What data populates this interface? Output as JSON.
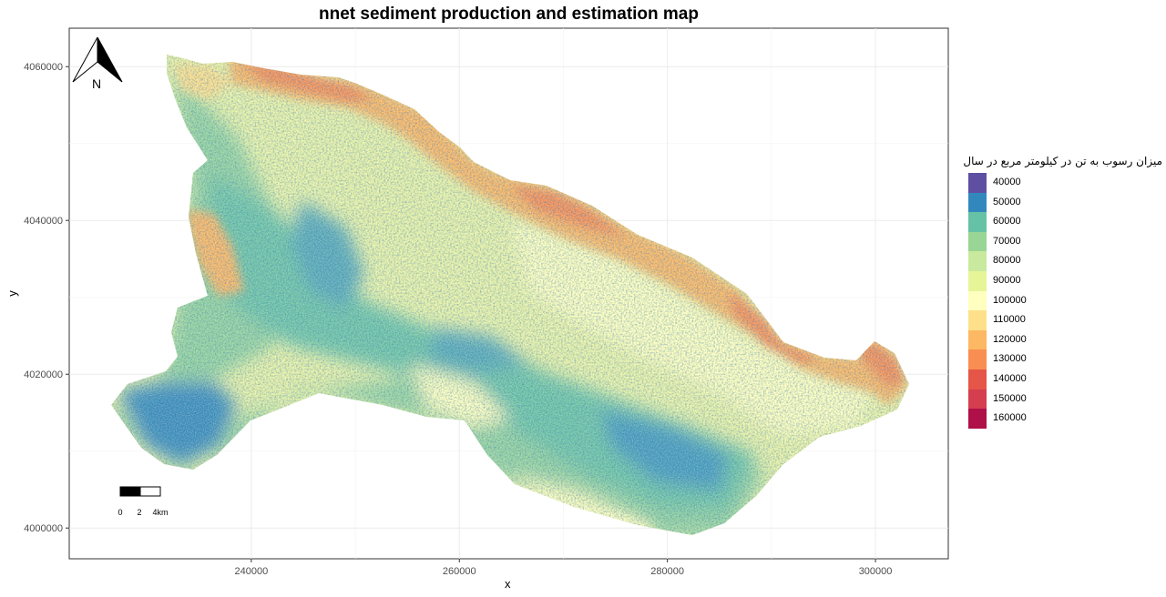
{
  "chart_data": {
    "type": "heatmap",
    "title": "nnet sediment production and estimation map",
    "xlabel": "x",
    "ylabel": "y",
    "xlim": [
      222500,
      307000
    ],
    "ylim": [
      3996000,
      4065000
    ],
    "x_ticks": [
      240000,
      260000,
      280000,
      300000
    ],
    "y_ticks": [
      4000000,
      4020000,
      4040000,
      4060000
    ],
    "x_tick_labels": [
      "240000",
      "260000",
      "280000",
      "300000"
    ],
    "y_tick_labels": [
      "4000000",
      "4020000",
      "4040000",
      "4060000"
    ],
    "grid": true,
    "legend_position": "right",
    "legend": {
      "title": "میزان رسوب به تن در کیلومتر مربع در سال",
      "items": [
        {
          "label": "40000",
          "value": 40000,
          "color": "#5E4FA2"
        },
        {
          "label": "50000",
          "value": 50000,
          "color": "#3288BD"
        },
        {
          "label": "60000",
          "value": 60000,
          "color": "#66C2A5"
        },
        {
          "label": "70000",
          "value": 70000,
          "color": "#99D594"
        },
        {
          "label": "80000",
          "value": 80000,
          "color": "#C9E99F"
        },
        {
          "label": "90000",
          "value": 90000,
          "color": "#E6F598"
        },
        {
          "label": "100000",
          "value": 100000,
          "color": "#FFFFBF"
        },
        {
          "label": "110000",
          "value": 110000,
          "color": "#FEE08B"
        },
        {
          "label": "120000",
          "value": 120000,
          "color": "#FDB863"
        },
        {
          "label": "130000",
          "value": 130000,
          "color": "#F98E52"
        },
        {
          "label": "140000",
          "value": 140000,
          "color": "#E55648"
        },
        {
          "label": "150000",
          "value": 150000,
          "color": "#D53E4F"
        },
        {
          "label": "160000",
          "value": 160000,
          "color": "#AF1048"
        }
      ]
    },
    "north_arrow": {
      "label": "N"
    },
    "scale_bar": {
      "labels": [
        "0",
        "2",
        "4km"
      ]
    }
  }
}
